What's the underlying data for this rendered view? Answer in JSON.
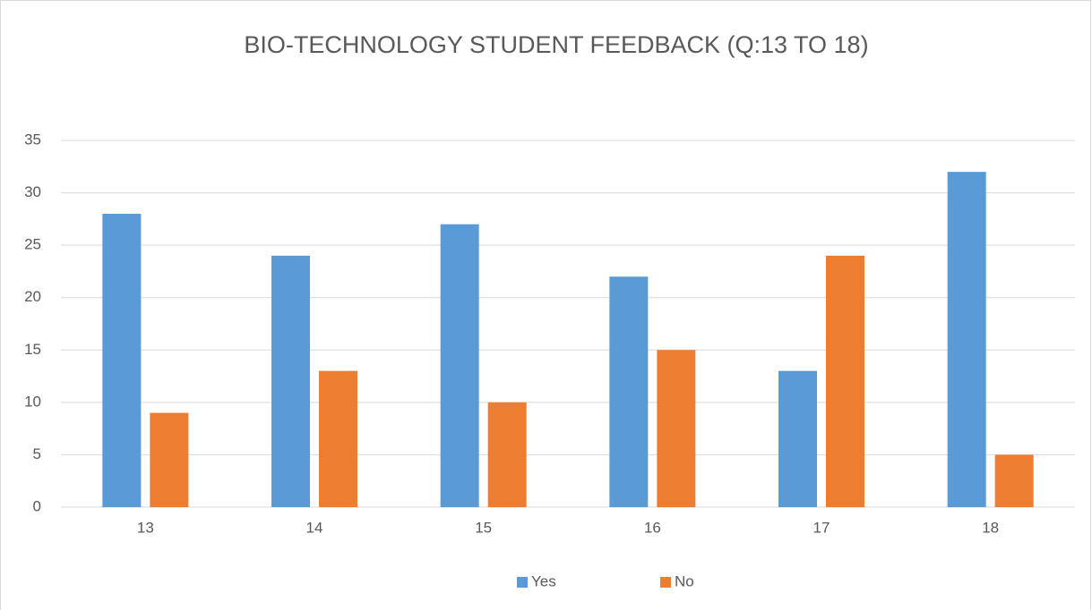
{
  "chart_data": {
    "type": "bar",
    "title": "BIO-TECHNOLOGY STUDENT FEEDBACK (Q:13 TO 18)",
    "categories": [
      "13",
      "14",
      "15",
      "16",
      "17",
      "18"
    ],
    "series": [
      {
        "name": "Yes",
        "color": "#5b9bd5",
        "values": [
          28,
          24,
          27,
          22,
          13,
          32
        ]
      },
      {
        "name": "No",
        "color": "#ed7d31",
        "values": [
          9,
          13,
          10,
          15,
          24,
          5
        ]
      }
    ],
    "ylim": [
      0,
      35
    ],
    "yticks": [
      0,
      5,
      10,
      15,
      20,
      25,
      30,
      35
    ],
    "grid": true,
    "legend": "bottom"
  }
}
